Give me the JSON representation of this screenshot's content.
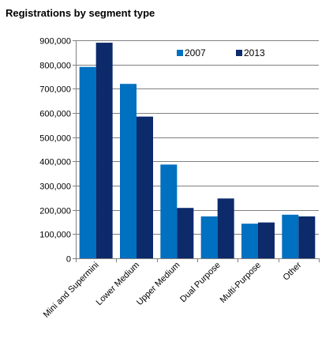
{
  "chart_data": {
    "type": "bar",
    "title": "Registrations by segment type",
    "xlabel": "",
    "ylabel": "",
    "categories": [
      "Mini and Supermini",
      "Lower Medium",
      "Upper Medium",
      "Dual Purpose",
      "Multi-Purpose",
      "Other"
    ],
    "series": [
      {
        "name": "2007",
        "color": "#0070c0",
        "values": [
          790000,
          720000,
          387000,
          173000,
          143000,
          180000
        ]
      },
      {
        "name": "2013",
        "color": "#0d2a6b",
        "values": [
          890000,
          585000,
          208000,
          247000,
          148000,
          173000
        ]
      }
    ],
    "ylim": [
      0,
      900000
    ],
    "yticks": [
      0,
      100000,
      200000,
      300000,
      400000,
      500000,
      600000,
      700000,
      800000,
      900000
    ],
    "ytick_labels": [
      "0",
      "100,000",
      "200,000",
      "300,000",
      "400,000",
      "500,000",
      "600,000",
      "700,000",
      "800,000",
      "900,000"
    ],
    "grid": true,
    "legend_position": "top-right",
    "gridline_color": "#808080",
    "axis_color": "#808080"
  }
}
